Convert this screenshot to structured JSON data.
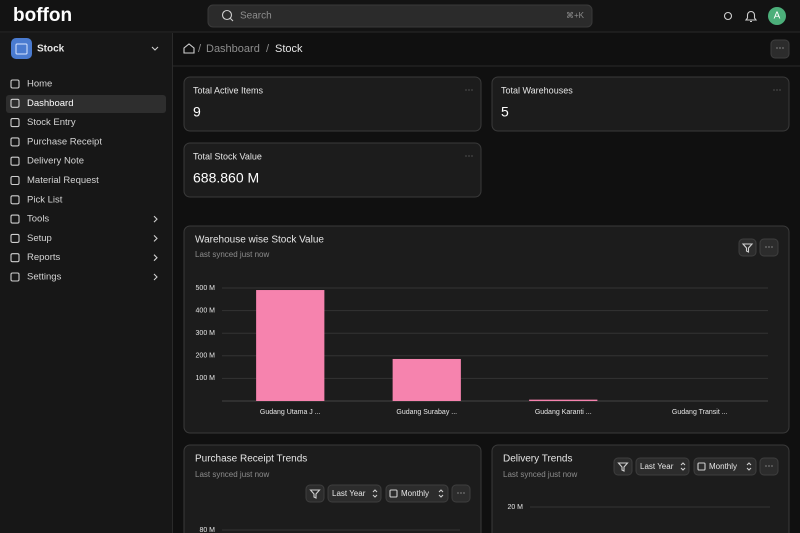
{
  "app": {
    "logo": "boffon",
    "search_placeholder": "Search",
    "search_shortcut": "⌘+K",
    "avatar": "A"
  },
  "sidebar": {
    "workspace": "Stock",
    "items": [
      "Home",
      "Dashboard",
      "Stock Entry",
      "Purchase Receipt",
      "Delivery Note",
      "Material Request",
      "Pick List",
      "Tools",
      "Setup",
      "Reports",
      "Settings"
    ]
  },
  "breadcrumb": [
    "Dashboard",
    "Stock"
  ],
  "cards": [
    {
      "label": "Total Active Items",
      "value": 9
    },
    {
      "label": "Total Warehouses",
      "value": 5
    },
    {
      "label": "Total Stock Value",
      "value": "688.860 M"
    }
  ],
  "chart_data": {
    "type": "bar",
    "title": "Warehouse wise Stock Value",
    "subtitle": "Last synced just now",
    "categories": [
      "Gudang Utama J ...",
      "Gudang Surabay ...",
      "Gudang Karanti ...",
      "Gudang Transit ..."
    ],
    "values": [
      491,
      186,
      6,
      0
    ],
    "color": "#f683ae",
    "ylim": [
      0,
      515
    ],
    "yticks": [
      {
        "value": 100,
        "label": "100 M"
      },
      {
        "value": 200,
        "label": "200 M"
      },
      {
        "value": 300,
        "label": "300 M"
      },
      {
        "value": 400,
        "label": "400 M"
      },
      {
        "value": 500,
        "label": "500 M"
      }
    ],
    "grid": true
  },
  "trend_cards": [
    {
      "title": "Purchase Receipt Trends",
      "subtitle": "Last synced just now",
      "period": "Last Year",
      "interval": "Monthly",
      "ytick": "80 M"
    },
    {
      "title": "Delivery Trends",
      "subtitle": "Last synced just now",
      "period": "Last Year",
      "interval": "Monthly",
      "ytick": "20 M"
    }
  ]
}
